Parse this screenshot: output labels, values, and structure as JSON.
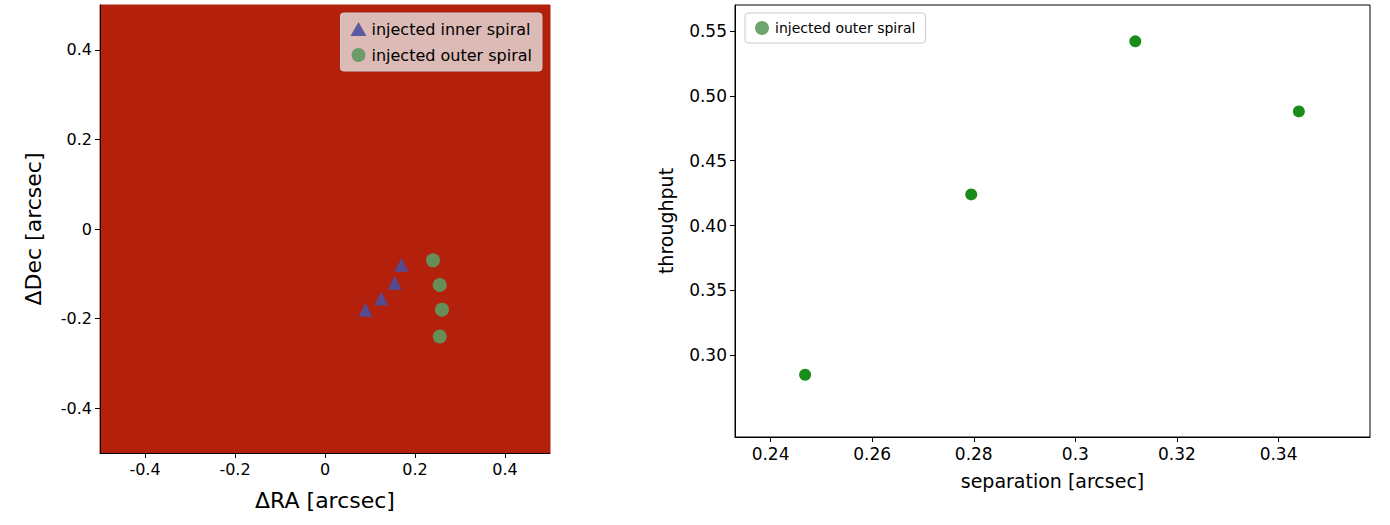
{
  "chart_data": [
    {
      "type": "scatter",
      "xlabel": "ΔRA [arcsec]",
      "ylabel": "ΔDec [arcsec]",
      "xlim": [
        -0.5,
        0.5
      ],
      "ylim": [
        -0.5,
        0.5
      ],
      "xticks": [
        -0.4,
        -0.2,
        0,
        0.2,
        0.4
      ],
      "yticks": [
        -0.4,
        -0.2,
        0,
        0.2,
        0.4
      ],
      "legend": "upper right",
      "series": [
        {
          "name": "injected inner spiral",
          "color": "#4b4f9e",
          "marker": "triangle",
          "x": [
            0.09,
            0.125,
            0.155,
            0.17
          ],
          "values": [
            -0.18,
            -0.155,
            -0.12,
            -0.08
          ]
        },
        {
          "name": "injected outer spiral",
          "color": "#5f9a5f",
          "marker": "circle",
          "x": [
            0.24,
            0.255,
            0.26,
            0.255
          ],
          "values": [
            -0.07,
            -0.125,
            -0.18,
            -0.24
          ]
        }
      ]
    },
    {
      "type": "scatter",
      "xlabel": "separation [arcsec]",
      "ylabel": "throughput",
      "xlim": [
        0.233,
        0.358
      ],
      "ylim": [
        0.237,
        0.57
      ],
      "xticks": [
        0.24,
        0.26,
        0.28,
        0.3,
        0.32,
        0.34
      ],
      "yticks": [
        {
          "value": 0.3,
          "label": "0.30"
        },
        0.35,
        {
          "value": 0.4,
          "label": "0.40"
        },
        0.45,
        {
          "value": 0.5,
          "label": "0.50"
        },
        0.55
      ],
      "legend": "upper left",
      "series": [
        {
          "name": "injected outer spiral",
          "color": "#008000",
          "marker": "circle",
          "x": [
            0.2468,
            0.2795,
            0.3118,
            0.344
          ],
          "values": [
            0.285,
            0.424,
            0.542,
            0.488
          ]
        }
      ]
    }
  ]
}
